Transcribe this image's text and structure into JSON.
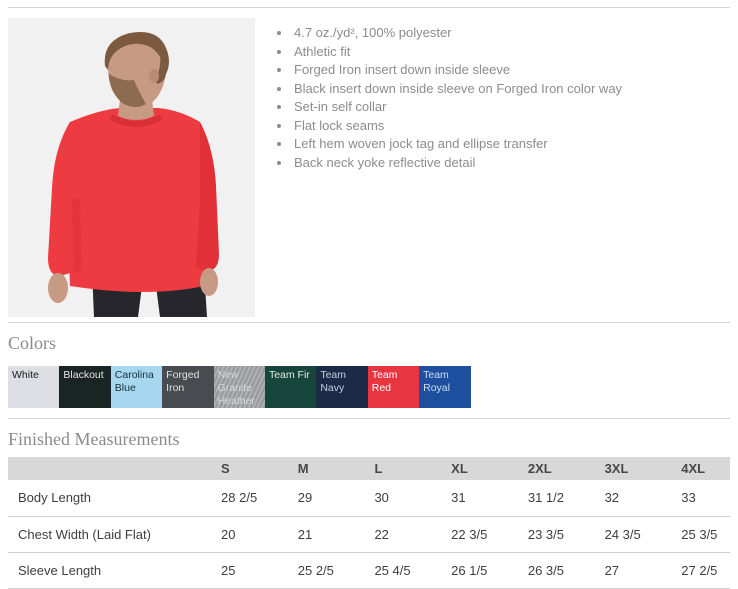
{
  "product": {
    "image_alt": "Model wearing red long sleeve performance shirt",
    "features": [
      "4.7 oz./yd², 100% polyester",
      "Athletic fit",
      "Forged Iron insert down inside sleeve",
      "Black insert down inside sleeve on Forged Iron color way",
      "Set-in self collar",
      "Flat lock seams",
      "Left hem woven jock tag and ellipse transfer",
      "Back neck yoke reflective detail"
    ]
  },
  "colors_section": {
    "heading": "Colors",
    "swatches": [
      {
        "name": "White",
        "hex": "#dcdee3",
        "text_color": "#1b1b1b"
      },
      {
        "name": "Blackout",
        "hex": "#1b2424",
        "text_color": "#e6e6e6"
      },
      {
        "name": "Carolina Blue",
        "hex": "#a6d7ee",
        "text_color": "#16303c"
      },
      {
        "name": "Forged Iron",
        "hex": "#4a4b50",
        "text_color": "#e2e2e2"
      },
      {
        "name": "New Granite Heather",
        "hex": "#a2a3a5",
        "text_color": "#d8d8d8",
        "heather": true
      },
      {
        "name": "Team Fir",
        "hex": "#16463b",
        "text_color": "#e3ecdf"
      },
      {
        "name": "Team Navy",
        "hex": "#1b2a46",
        "text_color": "#c4cede"
      },
      {
        "name": "Team Red",
        "hex": "#e93540",
        "text_color": "#ffffff"
      },
      {
        "name": "Team Royal",
        "hex": "#1d4f9e",
        "text_color": "#cfdcf2"
      }
    ]
  },
  "measurements_section": {
    "heading": "Finished Measurements",
    "columns": [
      "S",
      "M",
      "L",
      "XL",
      "2XL",
      "3XL",
      "4XL"
    ],
    "rows": [
      {
        "label": "Body Length",
        "values": [
          "28 2/5",
          "29",
          "30",
          "31",
          "31 1/2",
          "32",
          "33"
        ]
      },
      {
        "label": "Chest Width (Laid Flat)",
        "values": [
          "20",
          "21",
          "22",
          "22 3/5",
          "23 3/5",
          "24 3/5",
          "25 3/5"
        ]
      },
      {
        "label": "Sleeve Length",
        "values": [
          "25",
          "25 2/5",
          "25 4/5",
          "26 1/5",
          "26 3/5",
          "27",
          "27 2/5"
        ]
      }
    ]
  },
  "shirt_color": "#ee3b41"
}
